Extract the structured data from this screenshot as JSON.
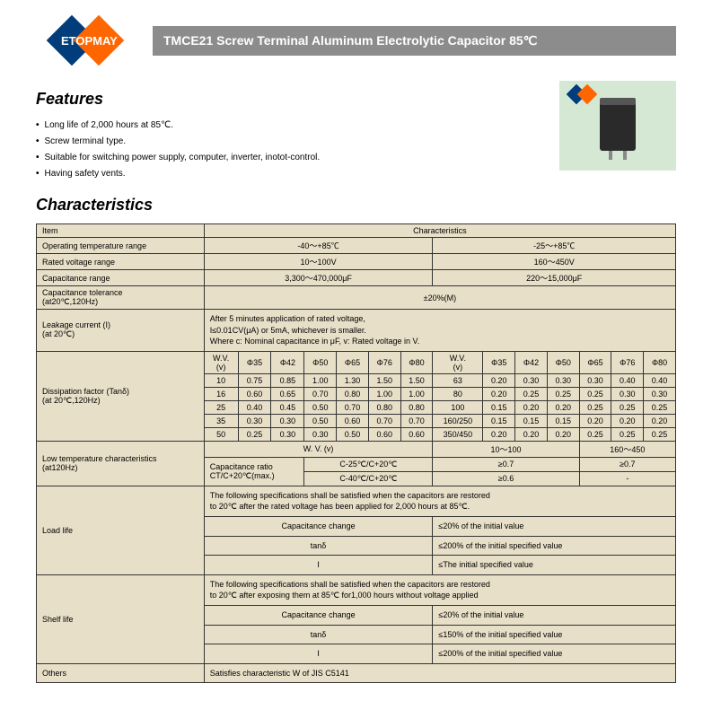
{
  "logo_text": "ETOPMAY",
  "title": "TMCE21 Screw Terminal  Aluminum Electrolytic Capacitor 85℃",
  "features_heading": "Features",
  "features": [
    "Long life of 2,000 hours at 85℃.",
    "Screw terminal type.",
    "Suitable for switching power supply, computer, inverter, inotot-control.",
    "Having safety vents."
  ],
  "char_heading": "Characteristics",
  "table": {
    "col_item": "Item",
    "col_char": "Characteristics",
    "rows": {
      "op_temp": {
        "label": "Operating temperature range",
        "v1": "-40～+85℃",
        "v2": "-25～+85℃"
      },
      "rated_v": {
        "label": "Rated voltage range",
        "v1": "10～100V",
        "v2": "160～450V"
      },
      "cap_range": {
        "label": "Capacitance range",
        "v1": "3,300～470,000μF",
        "v2": "220～15,000μF"
      },
      "cap_tol": {
        "label": "Capacitance tolerance\n(at20℃,120Hz)",
        "v": "±20%(M)"
      },
      "leakage": {
        "label": "Leakage current (I)\n(at 20℃)",
        "note": "After 5 minutes application of rated voltage,\nI≤0.01CV(μA) or 5mA, whichever is smaller.\nWhere c: Nominal capacitance in μF, v: Rated voltage in V."
      },
      "dissipation": {
        "label": "Dissipation factor (Tanδ)\n(at 20℃,120Hz)",
        "wv_label": "W.V.\n(v)",
        "head_left": [
          "Φ35",
          "Φ42",
          "Φ50",
          "Φ65",
          "Φ76",
          "Φ80"
        ],
        "head_right": [
          "Φ35",
          "Φ42",
          "Φ50",
          "Φ65",
          "Φ76",
          "Φ80"
        ],
        "left_rows": [
          {
            "wv": "10",
            "d": [
              "0.75",
              "0.85",
              "1.00",
              "1.30",
              "1.50",
              "1.50"
            ]
          },
          {
            "wv": "16",
            "d": [
              "0.60",
              "0.65",
              "0.70",
              "0.80",
              "1.00",
              "1.00"
            ]
          },
          {
            "wv": "25",
            "d": [
              "0.40",
              "0.45",
              "0.50",
              "0.70",
              "0.80",
              "0.80"
            ]
          },
          {
            "wv": "35",
            "d": [
              "0.30",
              "0.30",
              "0.50",
              "0.60",
              "0.70",
              "0.70"
            ]
          },
          {
            "wv": "50",
            "d": [
              "0.25",
              "0.30",
              "0.30",
              "0.50",
              "0.60",
              "0.60"
            ]
          }
        ],
        "right_rows": [
          {
            "wv": "63",
            "d": [
              "0.20",
              "0.30",
              "0.30",
              "0.30",
              "0.40",
              "0.40"
            ]
          },
          {
            "wv": "80",
            "d": [
              "0.20",
              "0.25",
              "0.25",
              "0.25",
              "0.30",
              "0.30"
            ]
          },
          {
            "wv": "100",
            "d": [
              "0.15",
              "0.20",
              "0.20",
              "0.25",
              "0.25",
              "0.25"
            ]
          },
          {
            "wv": "160/250",
            "d": [
              "0.15",
              "0.15",
              "0.15",
              "0.20",
              "0.20",
              "0.20"
            ]
          },
          {
            "wv": "350/450",
            "d": [
              "0.20",
              "0.20",
              "0.20",
              "0.25",
              "0.25",
              "0.25"
            ]
          }
        ]
      },
      "low_temp": {
        "label": "Low temperature characteristics\n(at120Hz)",
        "wv_head": "W. V. (v)",
        "range1": "10～100",
        "range2": "160～450",
        "ratio_label": "Capacitance ratio\nCT/C+20℃(max.)",
        "r1_label": "C-25℃/C+20℃",
        "r1_v1": "≥0.7",
        "r1_v2": "≥0.7",
        "r2_label": "C-40℃/C+20℃",
        "r2_v1": "≥0.6",
        "r2_v2": "-"
      },
      "load_life": {
        "label": "Load  life",
        "note": "The following specifications shall be satisfied when the capacitors are restored\nto 20℃ after the rated voltage has been applied for 2,000 hours at 85℃.",
        "cap_change": "Capacitance  change",
        "cap_change_v": "≤20% of the initial value",
        "tan": "tanδ",
        "tan_v": "≤200% of the initial specified value",
        "i": "I",
        "i_v": "≤The initial specified value"
      },
      "shelf_life": {
        "label": "Shelf life",
        "note": "The following specifications shall be satisfied when the capacitors are restored\nto 20℃ after exposing them at 85℃ for1,000 hours without voltage applied",
        "cap_change": "Capacitance  change",
        "cap_change_v": "≤20% of the initial value",
        "tan": "tanδ",
        "tan_v": "≤150% of the initial specified value",
        "i": "I",
        "i_v": "≤200% of the initial specified value"
      },
      "others": {
        "label": "Others",
        "v": "Satisfies characteristic W of JIS C5141"
      }
    }
  }
}
